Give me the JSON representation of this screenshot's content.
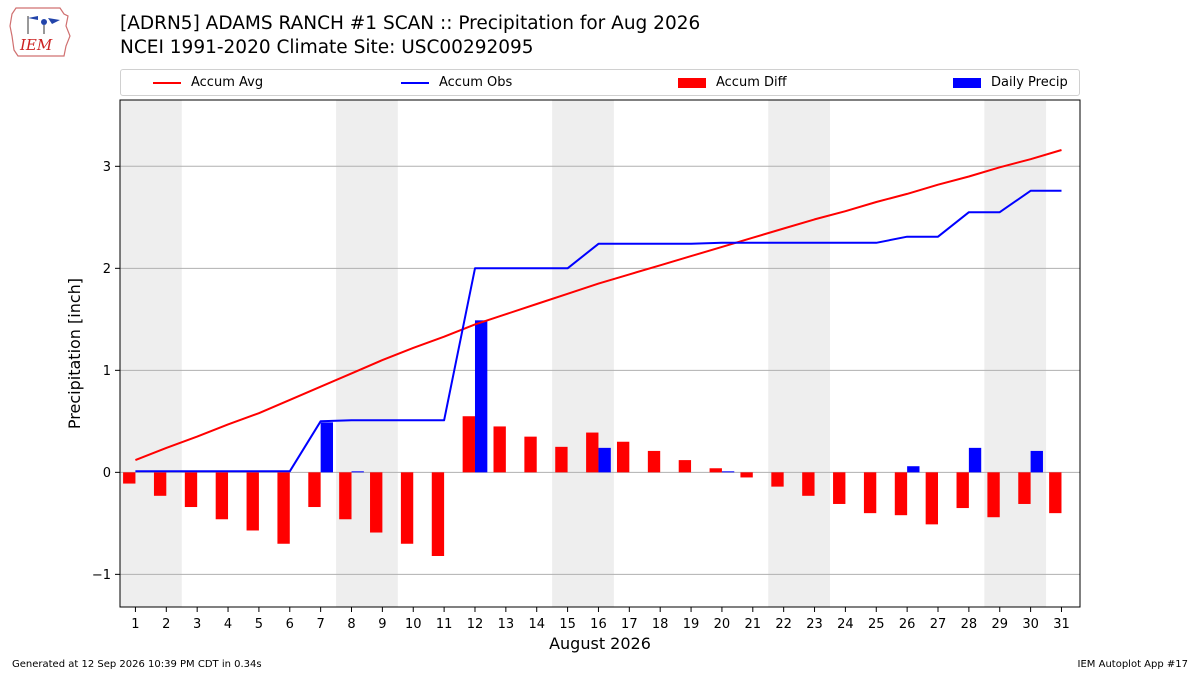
{
  "header": {
    "logo_text": "IEM",
    "title_line1": "[ADRN5] ADAMS RANCH #1 SCAN :: Precipitation for Aug 2026",
    "title_line2": "NCEI 1991-2020 Climate Site: USC00292095"
  },
  "legend": {
    "placement": "top",
    "items": [
      {
        "label": "Accum Avg",
        "kind": "line",
        "color": "#ff0000"
      },
      {
        "label": "Accum Obs",
        "kind": "line",
        "color": "#0000ff"
      },
      {
        "label": "Accum Diff",
        "kind": "bar",
        "color": "#ff0000"
      },
      {
        "label": "Daily Precip",
        "kind": "bar",
        "color": "#0000ff"
      }
    ]
  },
  "chart_data": {
    "type": "bar",
    "xlabel": "August 2026",
    "ylabel": "Precipitation [inch]",
    "ylim": [
      -1.32,
      3.65
    ],
    "yticks": [
      -1,
      0,
      1,
      2,
      3
    ],
    "ytick_labels": [
      "−1",
      "0",
      "1",
      "2",
      "3"
    ],
    "grid": "horizontal",
    "weekend_shading_color": "#eeeeee",
    "shaded_day_ranges": [
      [
        1,
        2
      ],
      [
        8,
        9
      ],
      [
        15,
        16
      ],
      [
        22,
        23
      ],
      [
        29,
        30
      ]
    ],
    "days": [
      1,
      2,
      3,
      4,
      5,
      6,
      7,
      8,
      9,
      10,
      11,
      12,
      13,
      14,
      15,
      16,
      17,
      18,
      19,
      20,
      21,
      22,
      23,
      24,
      25,
      26,
      27,
      28,
      29,
      30,
      31
    ],
    "series": [
      {
        "name": "Accum Avg",
        "type": "line",
        "color": "#ff0000",
        "values": [
          0.12,
          0.24,
          0.35,
          0.47,
          0.58,
          0.71,
          0.84,
          0.97,
          1.1,
          1.22,
          1.33,
          1.45,
          1.55,
          1.65,
          1.75,
          1.85,
          1.94,
          2.03,
          2.12,
          2.21,
          2.3,
          2.39,
          2.48,
          2.56,
          2.65,
          2.73,
          2.82,
          2.9,
          2.99,
          3.07,
          3.16
        ]
      },
      {
        "name": "Accum Obs",
        "type": "line",
        "color": "#0000ff",
        "values": [
          0.01,
          0.01,
          0.01,
          0.01,
          0.01,
          0.01,
          0.5,
          0.51,
          0.51,
          0.51,
          0.51,
          2.0,
          2.0,
          2.0,
          2.0,
          2.24,
          2.24,
          2.24,
          2.24,
          2.25,
          2.25,
          2.25,
          2.25,
          2.25,
          2.25,
          2.31,
          2.31,
          2.55,
          2.55,
          2.76,
          2.76
        ]
      },
      {
        "name": "Accum Diff",
        "type": "bar",
        "color": "#ff0000",
        "values": [
          -0.11,
          -0.23,
          -0.34,
          -0.46,
          -0.57,
          -0.7,
          -0.34,
          -0.46,
          -0.59,
          -0.7,
          -0.82,
          0.55,
          0.45,
          0.35,
          0.25,
          0.39,
          0.3,
          0.21,
          0.12,
          0.04,
          -0.05,
          -0.14,
          -0.23,
          -0.31,
          -0.4,
          -0.42,
          -0.51,
          -0.35,
          -0.44,
          -0.31,
          -0.4
        ]
      },
      {
        "name": "Daily Precip",
        "type": "bar",
        "color": "#0000ff",
        "values": [
          0,
          0,
          0,
          0,
          0,
          0,
          0.49,
          0.01,
          0,
          0,
          0,
          1.49,
          0,
          0,
          0,
          0.24,
          0,
          0,
          0,
          0.01,
          0,
          0,
          0,
          0,
          0,
          0.06,
          0,
          0.24,
          0,
          0.21,
          0
        ]
      }
    ]
  },
  "footer": {
    "left": "Generated at 12 Sep 2026 10:39 PM CDT in 0.34s",
    "right": "IEM Autoplot App #17"
  }
}
